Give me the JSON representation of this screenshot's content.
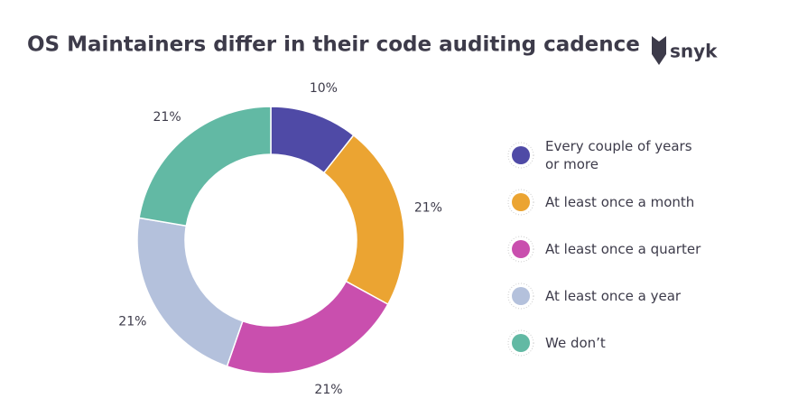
{
  "chart_data": {
    "type": "donut",
    "title": "OS Maintainers differ in their code auditing cadence",
    "brand": "snyk",
    "categories": [
      "Every couple of years or more",
      "At least once a month",
      "At least once a quarter",
      "At least once a year",
      "We don’t"
    ],
    "values": [
      10,
      21,
      21,
      21,
      21
    ],
    "value_labels": [
      "10%",
      "21%",
      "21%",
      "21%",
      "21%"
    ],
    "colors": [
      "#4f4aa6",
      "#eba432",
      "#c94fae",
      "#b4c1dc",
      "#62b9a4"
    ],
    "legend": "right"
  }
}
